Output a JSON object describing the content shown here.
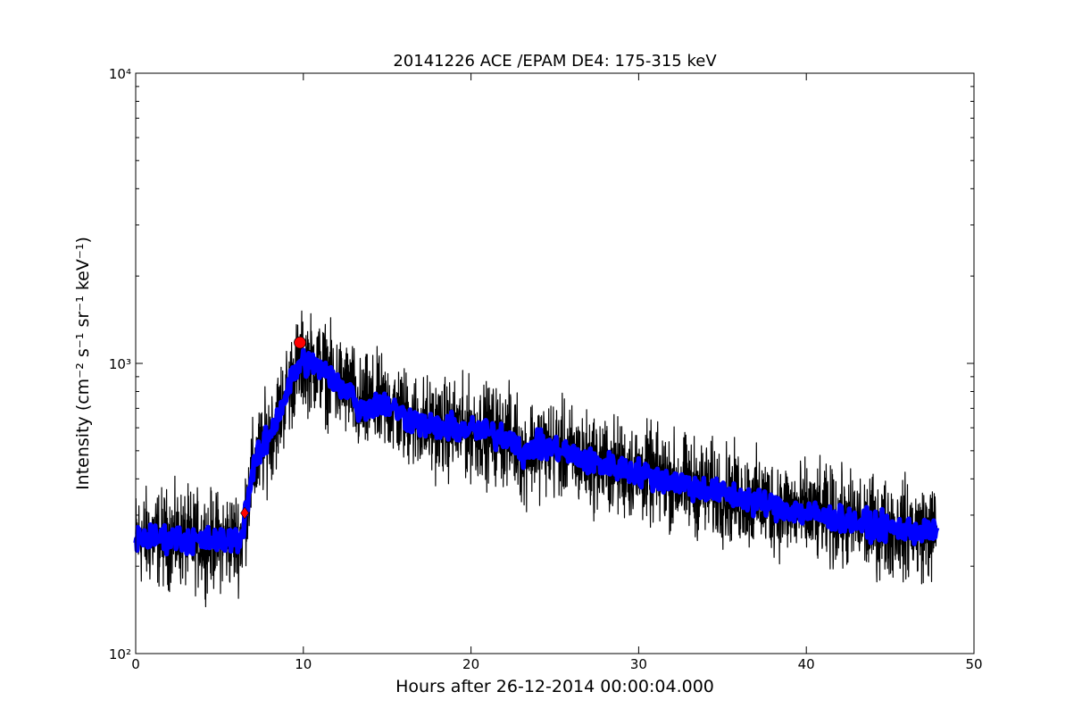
{
  "chart_data": {
    "type": "line",
    "title": "20141226 ACE /EPAM DE4: 175-315 keV",
    "xlabel": "Hours after 26-12-2014 00:00:04.000",
    "ylabel": "Intensity (cm⁻² s⁻¹ sr⁻¹ keV⁻¹)",
    "xlim": [
      0,
      50
    ],
    "ylim": [
      100,
      10000
    ],
    "yscale": "log",
    "xticks": [
      0,
      10,
      20,
      30,
      40,
      50
    ],
    "xtick_labels": [
      "0",
      "10",
      "20",
      "30",
      "40",
      "50"
    ],
    "yticks": [
      100,
      1000,
      10000
    ],
    "ytick_labels": [
      "10²",
      "10³",
      "10⁴"
    ],
    "grid": false,
    "series": [
      {
        "role": "raw",
        "color": "#000000",
        "x": [
          0,
          2,
          4,
          5,
          6.3,
          6.6,
          7,
          7.5,
          8,
          8.5,
          9,
          9.5,
          10,
          11,
          12,
          13,
          13.1,
          14,
          15,
          16,
          17,
          18,
          20,
          22,
          22.8,
          23.1,
          23.5,
          25,
          27,
          30,
          33,
          36,
          40,
          44,
          47.8
        ],
        "y": [
          250,
          250,
          245,
          245,
          250,
          320,
          430,
          500,
          570,
          660,
          790,
          940,
          1020,
          970,
          850,
          800,
          690,
          720,
          720,
          660,
          620,
          600,
          590,
          560,
          540,
          460,
          520,
          510,
          460,
          420,
          380,
          345,
          305,
          275,
          260
        ]
      },
      {
        "role": "smoothed",
        "color": "#0000ff",
        "x": [
          0,
          2,
          4,
          5,
          6.3,
          6.6,
          7,
          7.5,
          8,
          8.5,
          9,
          9.5,
          10,
          11,
          12,
          13,
          13.1,
          14,
          15,
          16,
          17,
          18,
          20,
          22,
          22.8,
          23.1,
          23.5,
          25,
          27,
          30,
          33,
          36,
          40,
          44,
          47.8
        ],
        "y": [
          250,
          250,
          245,
          245,
          250,
          320,
          430,
          500,
          570,
          660,
          790,
          940,
          1020,
          970,
          850,
          800,
          690,
          720,
          720,
          660,
          620,
          600,
          590,
          560,
          540,
          460,
          520,
          510,
          460,
          420,
          380,
          345,
          305,
          275,
          260
        ]
      }
    ],
    "markers": [
      {
        "shape": "diamond",
        "color": "#ff0000",
        "x": 6.5,
        "y": 305
      },
      {
        "shape": "circle",
        "color": "#ff0000",
        "x": 9.8,
        "y": 1180
      }
    ]
  }
}
